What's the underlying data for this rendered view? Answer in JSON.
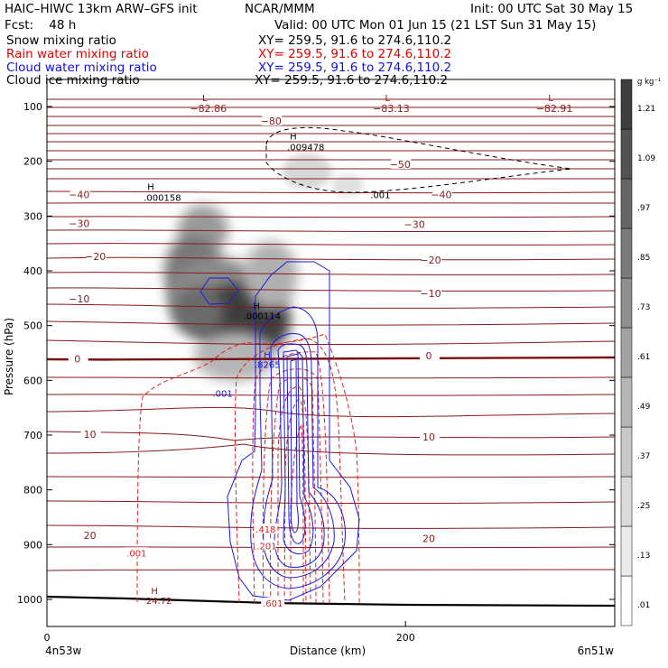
{
  "header": {
    "title": "HAIC–HIWC 13km ARW–GFS init",
    "org": "NCAR/MMM",
    "init": "Init: 00 UTC Sat 30 May 15",
    "fcst": "Fcst:    48 h",
    "valid": "Valid: 00 UTC Mon 01 Jun 15 (21 LST Sun 31 May 15)",
    "fields": [
      {
        "label": "Snow mixing ratio",
        "color": "#000000",
        "xy": "XY= 259.5, 91.6 to 274.6,110.2"
      },
      {
        "label": "Rain water mixing ratio",
        "color": "#e00000",
        "xy": "XY= 259.5, 91.6 to 274.6,110.2"
      },
      {
        "label": "Cloud water mixing ratio",
        "color": "#1010e0",
        "xy": "XY= 259.5, 91.6 to 274.6,110.2"
      },
      {
        "label": "Cloud ice mixing ratio",
        "color": "#000000",
        "xy": "XY= 259.5, 91.6 to 274.6,110.2"
      }
    ]
  },
  "chart_data": {
    "type": "contour",
    "xlabel": "Distance (km)",
    "ylabel": "Pressure (hPa)",
    "xlim": [
      0,
      315
    ],
    "ylim": [
      1050,
      50
    ],
    "x_ticks": [
      0,
      200
    ],
    "y_ticks": [
      100,
      200,
      300,
      400,
      500,
      600,
      700,
      800,
      900,
      1000
    ],
    "x_end_labels": {
      "left": "4n53w",
      "right": "6n51w"
    },
    "temperature_contours": {
      "color": "#8b1a1a",
      "label_unit": "°C",
      "labels": [
        {
          "text": "−80",
          "x": 125,
          "p": 128
        },
        {
          "text": "−50",
          "x": 197,
          "p": 207
        },
        {
          "text": "−40",
          "x": 18,
          "p": 262
        },
        {
          "text": "−40",
          "x": 220,
          "p": 262
        },
        {
          "text": "−30",
          "x": 18,
          "p": 315
        },
        {
          "text": "−30",
          "x": 205,
          "p": 317
        },
        {
          "text": "−20",
          "x": 27,
          "p": 375
        },
        {
          "text": "−20",
          "x": 214,
          "p": 382
        },
        {
          "text": "−10",
          "x": 18,
          "p": 453
        },
        {
          "text": "−10",
          "x": 214,
          "p": 443
        },
        {
          "text": "0",
          "x": 17,
          "p": 562
        },
        {
          "text": "0",
          "x": 213,
          "p": 557
        },
        {
          "text": "10",
          "x": 24,
          "p": 700
        },
        {
          "text": "10",
          "x": 213,
          "p": 705
        },
        {
          "text": "20",
          "x": 24,
          "p": 885
        },
        {
          "text": "20",
          "x": 213,
          "p": 890
        }
      ],
      "lows": [
        {
          "value": "−82.86",
          "x": 88,
          "p": 100
        },
        {
          "value": "−83.13",
          "x": 190,
          "p": 100
        },
        {
          "value": "−82.91",
          "x": 281,
          "p": 100
        }
      ],
      "highs": [
        {
          "value": "24.72",
          "x": 60,
          "p": 1000
        }
      ]
    },
    "cloud_ice": {
      "label": ".001",
      "x": 186,
      "p": 262,
      "max": {
        "value": ".009478",
        "x": 138,
        "p": 180
      }
    },
    "snow": {
      "max": {
        "value": ".000158",
        "x": 54,
        "p": 272
      }
    },
    "cloud_water": {
      "labels": [
        {
          "text": ".001",
          "x": 98,
          "p": 625
        }
      ],
      "max": {
        "value": ".8265",
        "x": 123,
        "p": 577
      },
      "extra_max": {
        "value": ".000114",
        "x": 120,
        "p": 488
      }
    },
    "rain_water": {
      "labels": [
        {
          "text": ".001",
          "x": 50,
          "p": 918
        },
        {
          "text": ".418",
          "x": 122,
          "p": 875
        },
        {
          "text": "1.201",
          "x": 121,
          "p": 905
        },
        {
          "text": ".601",
          "x": 126,
          "p": 1010
        }
      ]
    },
    "colorbar": {
      "unit": "g kg⁻¹",
      "labels": [
        ".01",
        ".13",
        ".25",
        ".37",
        ".49",
        ".61",
        ".73",
        ".85",
        ".97",
        "1.09",
        "1.21"
      ]
    }
  }
}
